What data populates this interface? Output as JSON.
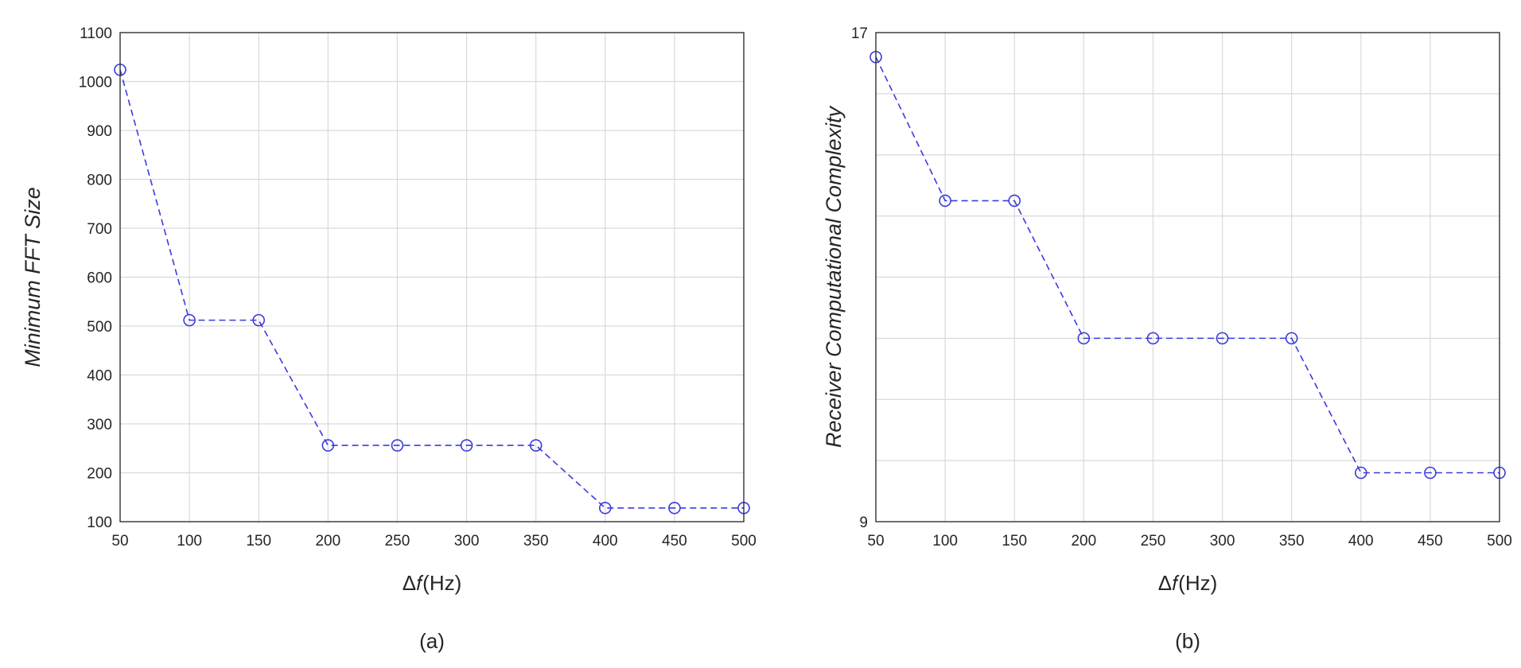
{
  "chart_data": [
    {
      "type": "line",
      "panel_label": "(a)",
      "xlabel": "Δ𝑓(Hz)",
      "ylabel": "Minimum FFT Size",
      "x": [
        50,
        100,
        150,
        200,
        250,
        300,
        350,
        400,
        450,
        500
      ],
      "y": [
        1024,
        512,
        512,
        256,
        256,
        256,
        256,
        128,
        128,
        128
      ],
      "xlim": [
        50,
        500
      ],
      "ylim": [
        100,
        1100
      ],
      "xticks": [
        50,
        100,
        150,
        200,
        250,
        300,
        350,
        400,
        450,
        500
      ],
      "yticks": [
        100,
        200,
        300,
        400,
        500,
        600,
        700,
        800,
        900,
        1000,
        1100
      ],
      "grid": true,
      "line_style": "dashed",
      "marker": "circle",
      "color": "#3b3bdc"
    },
    {
      "type": "line",
      "panel_label": "(b)",
      "xlabel": "Δ𝑓(Hz)",
      "ylabel": "Receiver Computational Complexity",
      "x": [
        50,
        100,
        150,
        200,
        250,
        300,
        350,
        400,
        450,
        500
      ],
      "y": [
        16.6,
        14.25,
        14.25,
        12.0,
        12.0,
        12.0,
        12.0,
        9.8,
        9.8,
        9.8
      ],
      "xlim": [
        50,
        500
      ],
      "ylim": [
        9,
        17
      ],
      "xticks": [
        50,
        100,
        150,
        200,
        250,
        300,
        350,
        400,
        450,
        500
      ],
      "yticks": [
        9,
        17
      ],
      "ygrid_count": 8,
      "grid": true,
      "line_style": "dashed",
      "marker": "circle",
      "color": "#3b3bdc"
    }
  ]
}
